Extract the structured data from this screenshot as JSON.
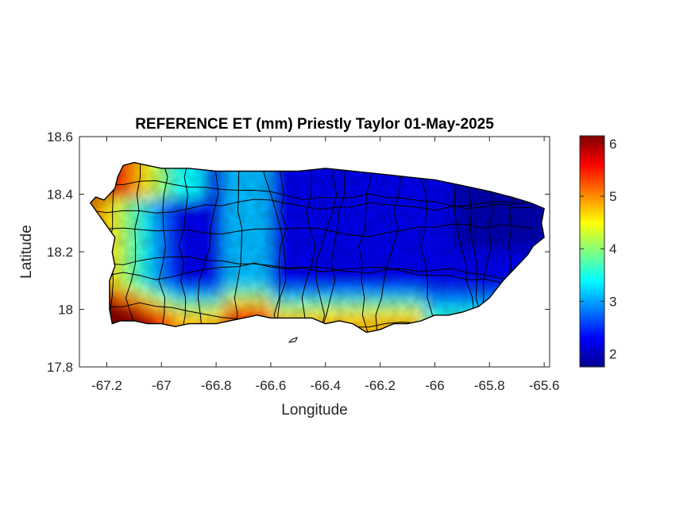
{
  "map": {
    "title": "REFERENCE ET (mm) Priestly Taylor 01-May-2025",
    "xlabel": "Longitude",
    "ylabel": "Latitude",
    "xlim": [
      -67.3,
      -65.58
    ],
    "ylim": [
      17.8,
      18.6
    ],
    "xticks": [
      -67.2,
      -67,
      -66.8,
      -66.6,
      -66.4,
      -66.2,
      -66,
      -65.8,
      -65.6
    ],
    "xtick_labels": [
      "-67.2",
      "-67",
      "-66.8",
      "-66.6",
      "-66.4",
      "-66.2",
      "-66",
      "-65.8",
      "-65.6"
    ],
    "yticks": [
      17.8,
      18,
      18.2,
      18.4,
      18.6
    ],
    "ytick_labels": [
      "17.8",
      "18",
      "18.2",
      "18.4",
      "18.6"
    ]
  },
  "colorbar": {
    "colormap": "jet",
    "range": [
      1.75,
      6.15
    ],
    "ticks": [
      2,
      3,
      4,
      5,
      6
    ],
    "tick_labels": [
      "2",
      "3",
      "4",
      "5",
      "6"
    ]
  },
  "colors": {
    "jet_stops": [
      "#00008f",
      "#0000ff",
      "#0080ff",
      "#00ffff",
      "#80ff80",
      "#ffff00",
      "#ff8000",
      "#ff0000",
      "#800000"
    ],
    "boundary": "#000000",
    "axes": "#262626"
  },
  "coastline": [
    [
      -67.26,
      18.37
    ],
    [
      -67.24,
      18.39
    ],
    [
      -67.21,
      18.38
    ],
    [
      -67.17,
      18.42
    ],
    [
      -67.16,
      18.46
    ],
    [
      -67.14,
      18.5
    ],
    [
      -67.1,
      18.51
    ],
    [
      -67.05,
      18.5
    ],
    [
      -67.0,
      18.49
    ],
    [
      -66.9,
      18.49
    ],
    [
      -66.8,
      18.48
    ],
    [
      -66.7,
      18.48
    ],
    [
      -66.6,
      18.48
    ],
    [
      -66.5,
      18.48
    ],
    [
      -66.4,
      18.49
    ],
    [
      -66.3,
      18.48
    ],
    [
      -66.2,
      18.47
    ],
    [
      -66.1,
      18.46
    ],
    [
      -66.0,
      18.45
    ],
    [
      -65.9,
      18.43
    ],
    [
      -65.8,
      18.41
    ],
    [
      -65.72,
      18.39
    ],
    [
      -65.65,
      18.37
    ],
    [
      -65.6,
      18.35
    ],
    [
      -65.61,
      18.3
    ],
    [
      -65.6,
      18.25
    ],
    [
      -65.64,
      18.22
    ],
    [
      -65.66,
      18.19
    ],
    [
      -65.7,
      18.15
    ],
    [
      -65.75,
      18.1
    ],
    [
      -65.8,
      18.04
    ],
    [
      -65.84,
      18.01
    ],
    [
      -65.9,
      17.99
    ],
    [
      -65.95,
      17.98
    ],
    [
      -66.0,
      17.98
    ],
    [
      -66.05,
      17.96
    ],
    [
      -66.1,
      17.95
    ],
    [
      -66.15,
      17.95
    ],
    [
      -66.2,
      17.93
    ],
    [
      -66.25,
      17.92
    ],
    [
      -66.3,
      17.95
    ],
    [
      -66.35,
      17.96
    ],
    [
      -66.4,
      17.95
    ],
    [
      -66.45,
      17.97
    ],
    [
      -66.5,
      17.97
    ],
    [
      -66.55,
      17.97
    ],
    [
      -66.6,
      17.97
    ],
    [
      -66.65,
      17.98
    ],
    [
      -66.7,
      17.97
    ],
    [
      -66.8,
      17.95
    ],
    [
      -66.9,
      17.95
    ],
    [
      -66.95,
      17.94
    ],
    [
      -67.0,
      17.95
    ],
    [
      -67.05,
      17.95
    ],
    [
      -67.1,
      17.96
    ],
    [
      -67.15,
      17.96
    ],
    [
      -67.18,
      17.95
    ],
    [
      -67.19,
      18.0
    ],
    [
      -67.19,
      18.1
    ],
    [
      -67.17,
      18.15
    ],
    [
      -67.18,
      18.2
    ],
    [
      -67.17,
      18.25
    ],
    [
      -67.2,
      18.29
    ],
    [
      -67.23,
      18.33
    ]
  ]
}
